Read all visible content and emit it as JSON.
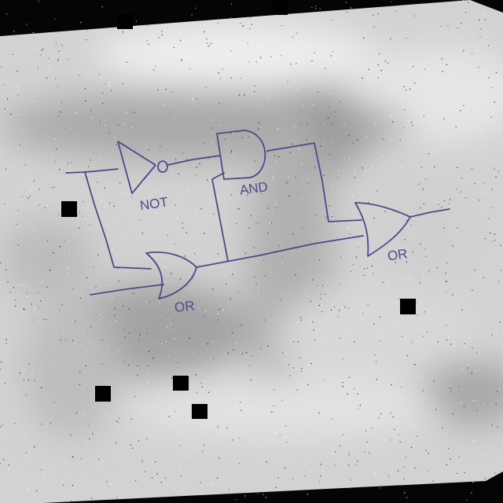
{
  "diagram": {
    "type": "logic-circuit",
    "background": {
      "paper_color": "#d2d2d2",
      "surround_color": "#050505",
      "occluder_color": "#000000"
    },
    "ink_color": "#4a4a8a",
    "gates": [
      {
        "id": "not-gate",
        "kind": "NOT",
        "label": "NOT"
      },
      {
        "id": "and-gate",
        "kind": "AND",
        "label": "AND"
      },
      {
        "id": "or-gate-left",
        "kind": "OR",
        "label": "OR"
      },
      {
        "id": "or-gate-right",
        "kind": "OR",
        "label": "OR"
      }
    ],
    "connections": [
      {
        "from": "input-a",
        "to": "not-gate"
      },
      {
        "from": "input-a",
        "to": "or-gate-left"
      },
      {
        "from": "input-b",
        "to": "or-gate-left"
      },
      {
        "from": "not-gate",
        "to": "and-gate"
      },
      {
        "from": "or-gate-left",
        "to": "and-gate"
      },
      {
        "from": "or-gate-left",
        "to": "or-gate-right"
      },
      {
        "from": "and-gate",
        "to": "or-gate-right"
      },
      {
        "from": "or-gate-right",
        "to": "output"
      }
    ]
  }
}
